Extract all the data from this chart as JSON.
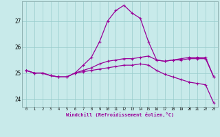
{
  "xlabel": "Windchill (Refroidissement éolien,°C)",
  "background_color": "#c8eaea",
  "line_color": "#990099",
  "grid_color": "#99cccc",
  "hours": [
    0,
    1,
    2,
    3,
    4,
    5,
    6,
    7,
    8,
    9,
    10,
    11,
    12,
    13,
    14,
    15,
    16,
    17,
    18,
    19,
    20,
    21,
    22,
    23
  ],
  "line1": [
    25.1,
    25.0,
    25.0,
    24.9,
    24.85,
    24.85,
    25.0,
    25.3,
    25.6,
    26.2,
    27.0,
    27.4,
    27.6,
    27.3,
    27.1,
    26.2,
    25.5,
    25.45,
    25.5,
    25.55,
    25.6,
    25.6,
    25.6,
    24.85
  ],
  "line2": [
    25.1,
    25.0,
    25.0,
    24.9,
    24.85,
    24.85,
    25.0,
    25.1,
    25.2,
    25.35,
    25.45,
    25.5,
    25.55,
    25.55,
    25.6,
    25.65,
    25.5,
    25.45,
    25.5,
    25.5,
    25.55,
    25.55,
    25.55,
    24.85
  ],
  "line3": [
    25.1,
    25.0,
    25.0,
    24.9,
    24.85,
    24.85,
    25.0,
    25.05,
    25.1,
    25.15,
    25.2,
    25.25,
    25.3,
    25.3,
    25.35,
    25.3,
    25.1,
    24.95,
    24.85,
    24.75,
    24.65,
    24.6,
    24.55,
    23.85
  ],
  "ylim": [
    23.7,
    27.75
  ],
  "yticks": [
    24,
    25,
    26,
    27
  ],
  "xticks": [
    0,
    1,
    2,
    3,
    4,
    5,
    6,
    7,
    8,
    9,
    10,
    11,
    12,
    13,
    14,
    15,
    16,
    17,
    18,
    19,
    20,
    21,
    22,
    23
  ],
  "figsize": [
    3.2,
    2.0
  ],
  "dpi": 100
}
